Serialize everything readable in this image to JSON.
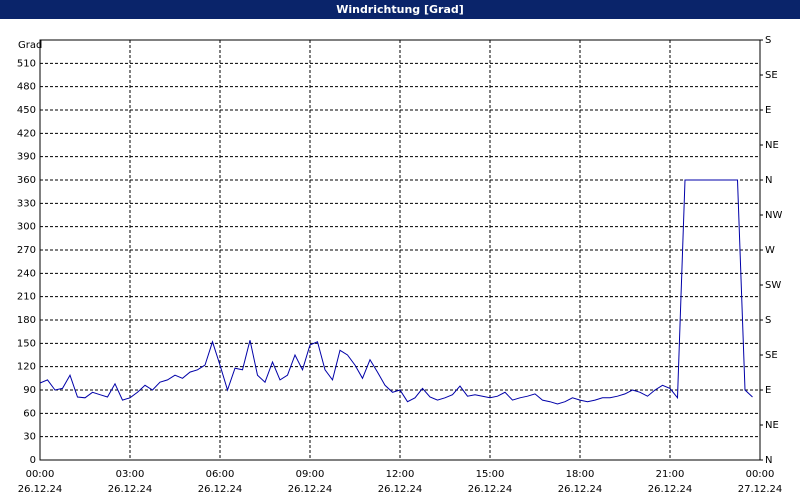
{
  "chart_data": {
    "type": "line",
    "title": "Windrichtung [Grad]",
    "y_label": "Grad",
    "color": "#0000a8",
    "grid": true,
    "xlim": [
      "26.12.24 00:00",
      "27.12.24 00:00"
    ],
    "xticks": [
      {
        "value": "26.12.24 00:00",
        "label": "00:00",
        "date": "26.12.24"
      },
      {
        "value": "26.12.24 03:00",
        "label": "03:00",
        "date": "26.12.24"
      },
      {
        "value": "26.12.24 06:00",
        "label": "06:00",
        "date": "26.12.24"
      },
      {
        "value": "26.12.24 09:00",
        "label": "09:00",
        "date": "26.12.24"
      },
      {
        "value": "26.12.24 12:00",
        "label": "12:00",
        "date": "26.12.24"
      },
      {
        "value": "26.12.24 15:00",
        "label": "15:00",
        "date": "26.12.24"
      },
      {
        "value": "26.12.24 18:00",
        "label": "18:00",
        "date": "26.12.24"
      },
      {
        "value": "26.12.24 21:00",
        "label": "21:00",
        "date": "26.12.24"
      },
      {
        "value": "27.12.24 00:00",
        "label": "00:00",
        "date": "27.12.24"
      }
    ],
    "ylim": [
      0,
      540
    ],
    "yticks": [
      0,
      30,
      60,
      90,
      120,
      150,
      180,
      210,
      240,
      270,
      300,
      330,
      360,
      390,
      420,
      450,
      480,
      510
    ],
    "y2lim": [
      0,
      540
    ],
    "y2ticks": [
      {
        "value": 0,
        "label": "N"
      },
      {
        "value": 45,
        "label": "NE"
      },
      {
        "value": 90,
        "label": "E"
      },
      {
        "value": 135,
        "label": "SE"
      },
      {
        "value": 180,
        "label": "S"
      },
      {
        "value": 225,
        "label": "SW"
      },
      {
        "value": 270,
        "label": "W"
      },
      {
        "value": 315,
        "label": "NW"
      },
      {
        "value": 360,
        "label": "N"
      },
      {
        "value": 405,
        "label": "NE"
      },
      {
        "value": 450,
        "label": "E"
      },
      {
        "value": 495,
        "label": "SE"
      },
      {
        "value": 540,
        "label": "S"
      }
    ],
    "x": [
      "26.12.24 00:00",
      "26.12.24 00:15",
      "26.12.24 00:30",
      "26.12.24 00:45",
      "26.12.24 01:00",
      "26.12.24 01:15",
      "26.12.24 01:30",
      "26.12.24 01:45",
      "26.12.24 02:00",
      "26.12.24 02:15",
      "26.12.24 02:30",
      "26.12.24 02:45",
      "26.12.24 03:00",
      "26.12.24 03:15",
      "26.12.24 03:30",
      "26.12.24 03:45",
      "26.12.24 04:00",
      "26.12.24 04:15",
      "26.12.24 04:30",
      "26.12.24 04:45",
      "26.12.24 05:00",
      "26.12.24 05:15",
      "26.12.24 05:30",
      "26.12.24 05:45",
      "26.12.24 06:00",
      "26.12.24 06:15",
      "26.12.24 06:30",
      "26.12.24 06:45",
      "26.12.24 07:00",
      "26.12.24 07:15",
      "26.12.24 07:30",
      "26.12.24 07:45",
      "26.12.24 08:00",
      "26.12.24 08:15",
      "26.12.24 08:30",
      "26.12.24 08:45",
      "26.12.24 09:00",
      "26.12.24 09:15",
      "26.12.24 09:30",
      "26.12.24 09:45",
      "26.12.24 10:00",
      "26.12.24 10:15",
      "26.12.24 10:30",
      "26.12.24 10:45",
      "26.12.24 11:00",
      "26.12.24 11:15",
      "26.12.24 11:30",
      "26.12.24 11:45",
      "26.12.24 12:00",
      "26.12.24 12:15",
      "26.12.24 12:30",
      "26.12.24 12:45",
      "26.12.24 13:00",
      "26.12.24 13:15",
      "26.12.24 13:30",
      "26.12.24 13:45",
      "26.12.24 14:00",
      "26.12.24 14:15",
      "26.12.24 14:30",
      "26.12.24 14:45",
      "26.12.24 15:00",
      "26.12.24 15:15",
      "26.12.24 15:30",
      "26.12.24 15:45",
      "26.12.24 16:00",
      "26.12.24 16:15",
      "26.12.24 16:30",
      "26.12.24 16:45",
      "26.12.24 17:00",
      "26.12.24 17:15",
      "26.12.24 17:30",
      "26.12.24 17:45",
      "26.12.24 18:00",
      "26.12.24 18:15",
      "26.12.24 18:30",
      "26.12.24 18:45",
      "26.12.24 19:00",
      "26.12.24 19:15",
      "26.12.24 19:30",
      "26.12.24 19:45",
      "26.12.24 20:00",
      "26.12.24 20:15",
      "26.12.24 20:30",
      "26.12.24 20:45",
      "26.12.24 21:00",
      "26.12.24 21:15",
      "26.12.24 21:30",
      "26.12.24 21:45",
      "26.12.24 22:00",
      "26.12.24 22:15",
      "26.12.24 22:30",
      "26.12.24 22:45",
      "26.12.24 23:00",
      "26.12.24 23:15",
      "26.12.24 23:30",
      "26.12.24 23:45"
    ],
    "values": [
      99,
      103,
      90,
      92,
      109,
      81,
      80,
      87,
      84,
      81,
      98,
      77,
      80,
      87,
      96,
      90,
      100,
      103,
      109,
      105,
      113,
      116,
      122,
      152,
      122,
      90,
      118,
      116,
      154,
      109,
      100,
      126,
      103,
      109,
      135,
      116,
      148,
      152,
      116,
      103,
      141,
      135,
      122,
      105,
      129,
      113,
      96,
      87,
      90,
      75,
      80,
      92,
      81,
      77,
      80,
      84,
      95,
      82,
      84,
      82,
      80,
      82,
      87,
      77,
      80,
      82,
      85,
      77,
      75,
      72,
      75,
      80,
      77,
      75,
      77,
      80,
      80,
      82,
      85,
      90,
      87,
      82,
      90,
      96,
      92,
      80,
      360,
      360,
      360,
      360,
      360,
      360,
      360,
      360,
      90,
      81
    ]
  }
}
